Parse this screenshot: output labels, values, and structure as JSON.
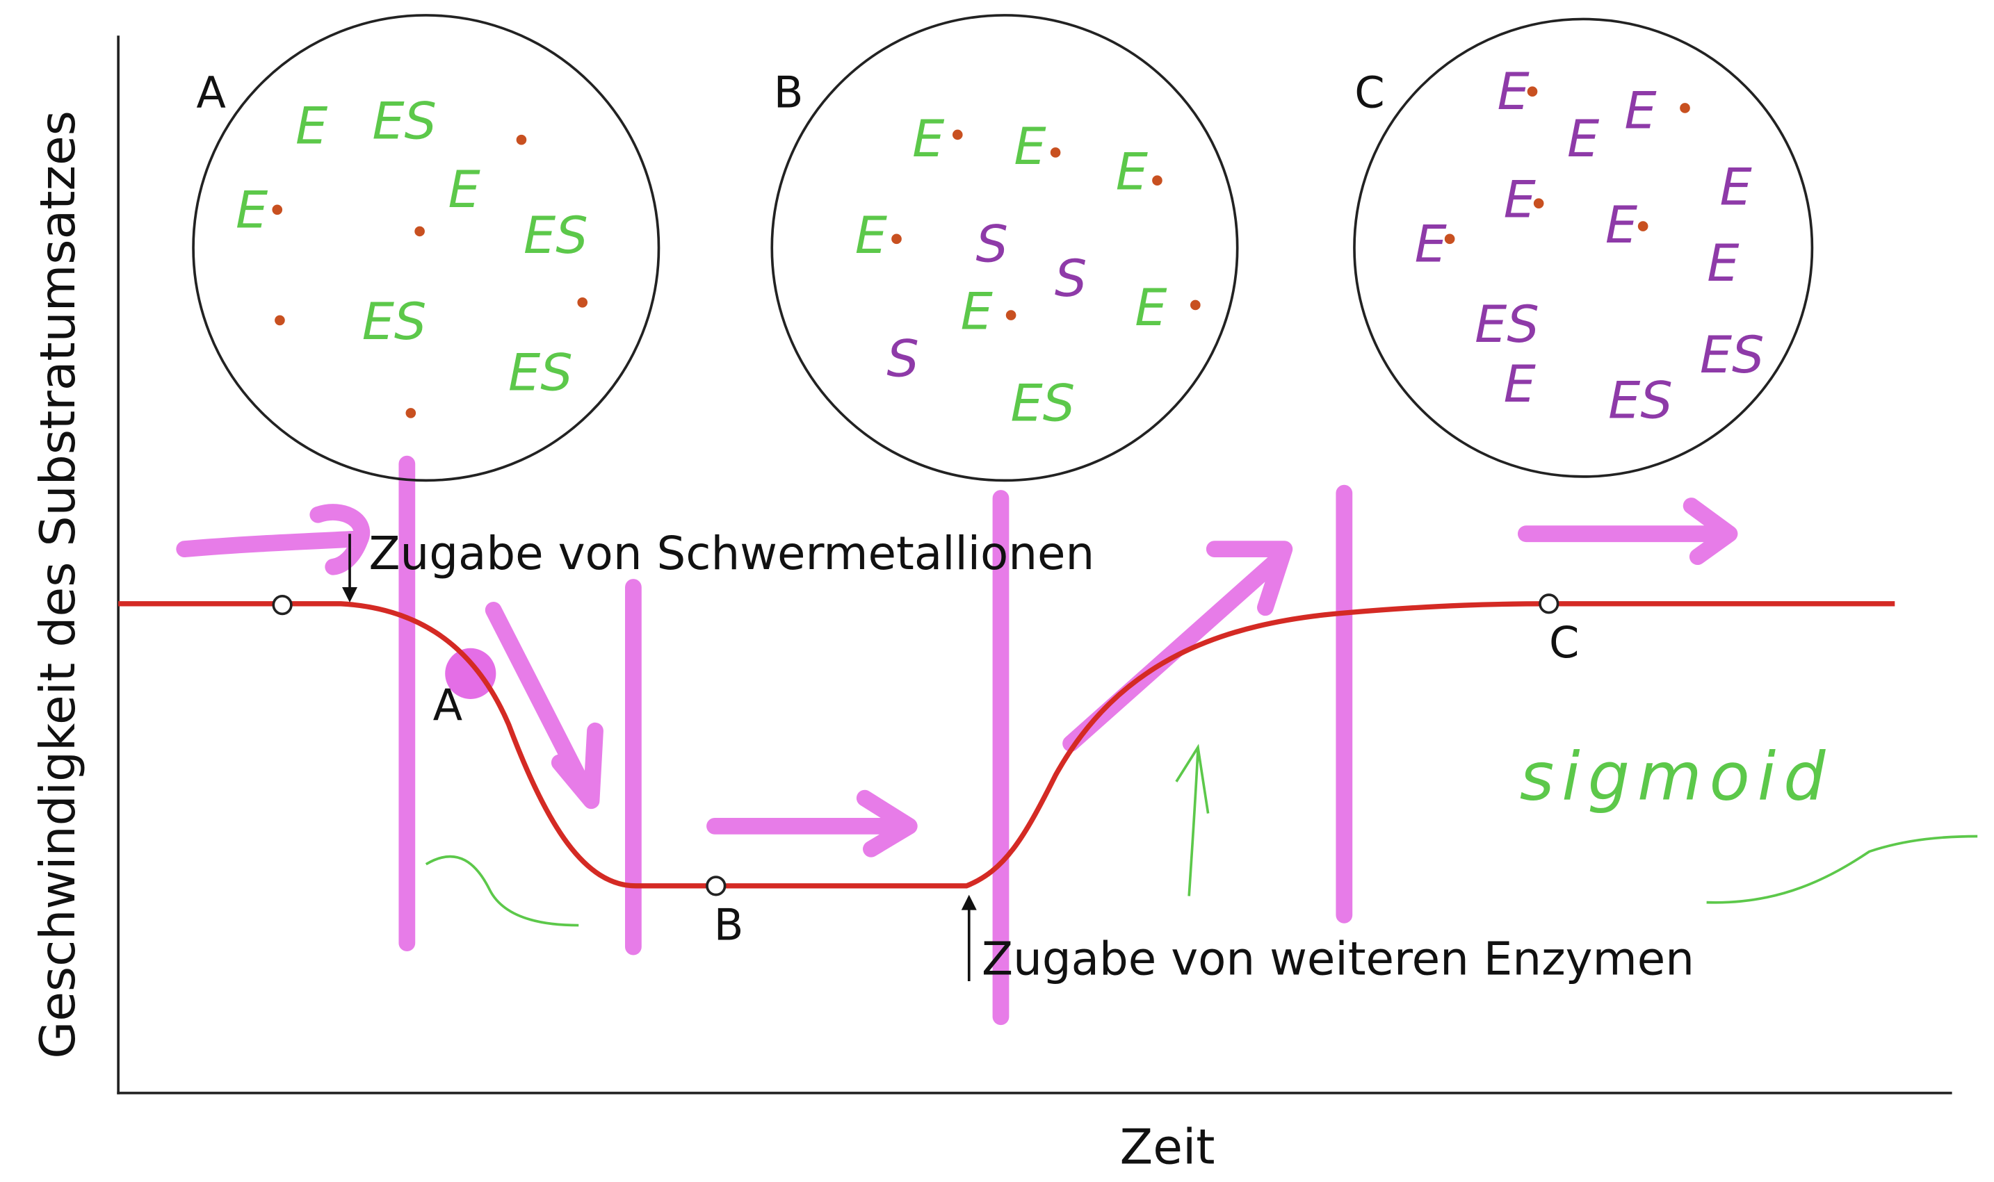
{
  "axes": {
    "y_label": "Geschwindigkeit des Substratumsatzes",
    "x_label": "Zeit"
  },
  "annotations": {
    "metal": "Zugabe von Schwermetallionen",
    "enzymes": "Zugabe von weiteren Enzymen",
    "handwritten": "sigmoid"
  },
  "points": [
    {
      "label": "A"
    },
    {
      "label": "B"
    },
    {
      "label": "C"
    }
  ],
  "curve_color": "#d42a24",
  "marker_color": "#e46ee6",
  "circles": [
    {
      "label": "A",
      "items": [
        {
          "text": "E",
          "color": "#5cc84a"
        },
        {
          "text": "ES",
          "color": "#5cc84a"
        },
        {
          "text": "E",
          "color": "#5cc84a"
        },
        {
          "text": "E",
          "color": "#5cc84a"
        },
        {
          "text": "ES",
          "color": "#5cc84a"
        },
        {
          "text": "ES",
          "color": "#5cc84a"
        },
        {
          "text": "ES",
          "color": "#5cc84a"
        }
      ]
    },
    {
      "label": "B",
      "items": [
        {
          "text": "E",
          "color": "#5cc84a"
        },
        {
          "text": "E",
          "color": "#5cc84a"
        },
        {
          "text": "E",
          "color": "#5cc84a"
        },
        {
          "text": "E",
          "color": "#5cc84a"
        },
        {
          "text": "S",
          "color": "#8e3aa8"
        },
        {
          "text": "S",
          "color": "#8e3aa8"
        },
        {
          "text": "E",
          "color": "#5cc84a"
        },
        {
          "text": "E",
          "color": "#5cc84a"
        },
        {
          "text": "S",
          "color": "#8e3aa8"
        },
        {
          "text": "ES",
          "color": "#5cc84a"
        }
      ]
    },
    {
      "label": "C",
      "items": [
        {
          "text": "E",
          "color": "#8e3aa8"
        },
        {
          "text": "E",
          "color": "#8e3aa8"
        },
        {
          "text": "E",
          "color": "#8e3aa8"
        },
        {
          "text": "E",
          "color": "#8e3aa8"
        },
        {
          "text": "E",
          "color": "#8e3aa8"
        },
        {
          "text": "E",
          "color": "#8e3aa8"
        },
        {
          "text": "E",
          "color": "#8e3aa8"
        },
        {
          "text": "E",
          "color": "#8e3aa8"
        },
        {
          "text": "ES",
          "color": "#8e3aa8"
        },
        {
          "text": "E",
          "color": "#8e3aa8"
        },
        {
          "text": "ES",
          "color": "#8e3aa8"
        },
        {
          "text": "ES",
          "color": "#8e3aa8"
        }
      ]
    }
  ]
}
